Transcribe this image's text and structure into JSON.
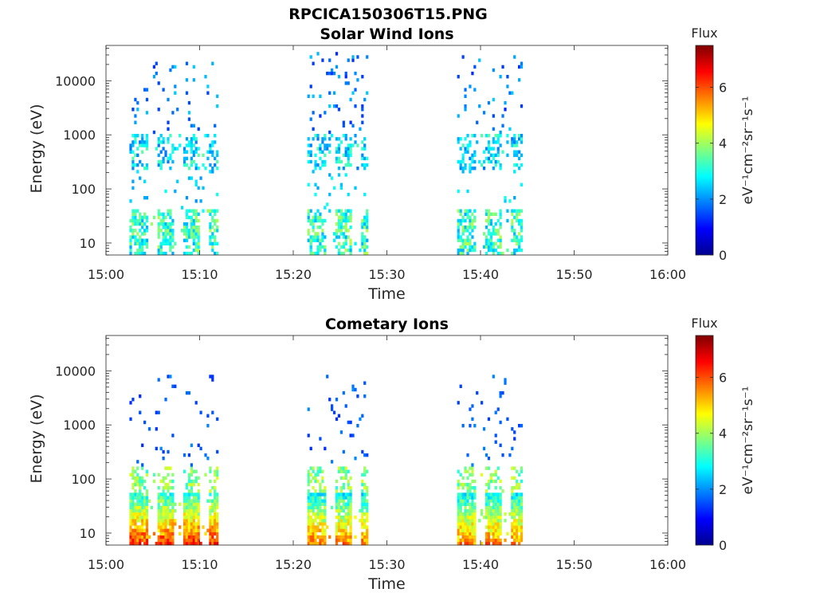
{
  "figure_title": "RPCICA150306T15.PNG",
  "colors": {
    "axis": "#262626",
    "background": "#ffffff",
    "colormap": "jet"
  },
  "chart_data": [
    {
      "type": "heatmap",
      "title": "Solar Wind Ions",
      "xlabel": "Time",
      "ylabel": "Energy (eV)",
      "x_tick_labels": [
        "15:00",
        "15:10",
        "15:20",
        "15:30",
        "15:40",
        "15:50",
        "16:00"
      ],
      "y_tick_labels": [
        "10",
        "100",
        "1000",
        "10000"
      ],
      "xlim": [
        "15:00",
        "16:00"
      ],
      "ylim": [
        6,
        45000
      ],
      "y_scale": "log",
      "colorbar": {
        "label": "Flux",
        "unit": "eV⁻¹cm⁻²sr⁻¹s⁻¹",
        "ticks": [
          "0",
          "2",
          "4",
          "6"
        ],
        "range": [
          0,
          7.5
        ]
      },
      "bursts": [
        {
          "start": "15:02:30",
          "end": "15:12:00",
          "energy_range_ev": [
            6,
            20000
          ],
          "peak_flux": 3.5
        },
        {
          "start": "15:21:30",
          "end": "15:28:00",
          "energy_range_ev": [
            6,
            30000
          ],
          "peak_flux": 3.5
        },
        {
          "start": "15:37:30",
          "end": "15:44:30",
          "energy_range_ev": [
            6,
            30000
          ],
          "peak_flux": 3.5
        }
      ]
    },
    {
      "type": "heatmap",
      "title": "Cometary Ions",
      "xlabel": "Time",
      "ylabel": "Energy (eV)",
      "x_tick_labels": [
        "15:00",
        "15:10",
        "15:20",
        "15:30",
        "15:40",
        "15:50",
        "16:00"
      ],
      "y_tick_labels": [
        "10",
        "100",
        "1000",
        "10000"
      ],
      "xlim": [
        "15:00",
        "16:00"
      ],
      "ylim": [
        6,
        45000
      ],
      "y_scale": "log",
      "colorbar": {
        "label": "Flux",
        "unit": "eV⁻¹cm⁻²sr⁻¹s⁻¹",
        "ticks": [
          "0",
          "2",
          "4",
          "6"
        ],
        "range": [
          0,
          7.5
        ]
      },
      "bursts": [
        {
          "start": "15:02:30",
          "end": "15:12:00",
          "energy_range_ev": [
            6,
            8000
          ],
          "peak_flux": 6.5
        },
        {
          "start": "15:21:30",
          "end": "15:28:00",
          "energy_range_ev": [
            6,
            8000
          ],
          "peak_flux": 6.0
        },
        {
          "start": "15:37:30",
          "end": "15:44:30",
          "energy_range_ev": [
            6,
            8000
          ],
          "peak_flux": 6.0
        }
      ]
    }
  ]
}
